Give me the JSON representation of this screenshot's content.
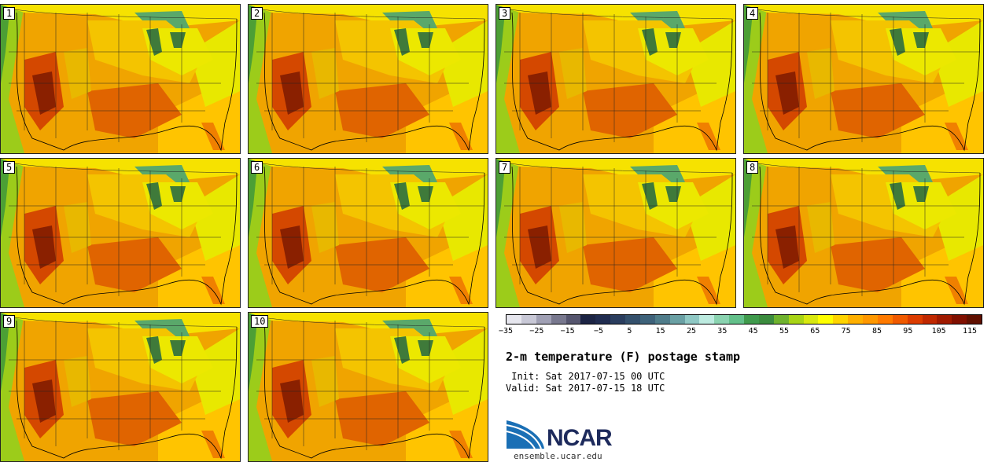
{
  "panels": [
    {
      "label": "1"
    },
    {
      "label": "2"
    },
    {
      "label": "3"
    },
    {
      "label": "4"
    },
    {
      "label": "5"
    },
    {
      "label": "6"
    },
    {
      "label": "7"
    },
    {
      "label": "8"
    },
    {
      "label": "9"
    },
    {
      "label": "10"
    }
  ],
  "colorbar": {
    "colors": [
      "#e6e6ee",
      "#c8c8d6",
      "#a0a0b4",
      "#78788e",
      "#55556e",
      "#1c2444",
      "#202c50",
      "#2a3d5e",
      "#34506c",
      "#3e627a",
      "#4f7c8a",
      "#6aa0a4",
      "#8fc8c4",
      "#bdebe0",
      "#8ad3b0",
      "#63c08a",
      "#3f9a4c",
      "#3b8b3e",
      "#6fb22e",
      "#a8d416",
      "#d8e810",
      "#ffff00",
      "#ffd400",
      "#ffb000",
      "#ff9800",
      "#ff7a00",
      "#f05a00",
      "#dc3c00",
      "#c02800",
      "#a01a00",
      "#801000",
      "#601000"
    ],
    "tick_labels": [
      "−35",
      "−25",
      "−15",
      "−5",
      "5",
      "15",
      "25",
      "35",
      "45",
      "55",
      "65",
      "75",
      "85",
      "95",
      "105",
      "115"
    ]
  },
  "title": "2-m temperature (F) postage stamp",
  "init_line": " Init: Sat 2017-07-15 00 UTC",
  "valid_line": "Valid: Sat 2017-07-15 18 UTC",
  "logo_text": "NCAR",
  "url": "ensemble.ucar.edu"
}
